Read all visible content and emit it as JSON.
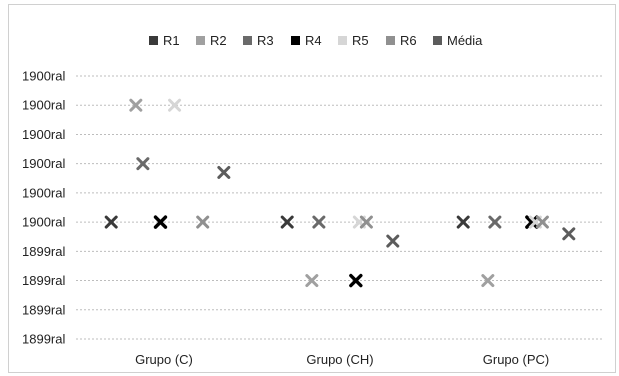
{
  "chart_data": {
    "type": "scatter",
    "marker": "x",
    "categories": [
      "Grupo (C)",
      "Grupo (CH)",
      "Grupo (PC)"
    ],
    "y_tick_labels": [
      "1900ral",
      "1900ral",
      "1900ral",
      "1900ral",
      "1900ral",
      "1900ral",
      "1899ral",
      "1899ral",
      "1899ral",
      "1899ral"
    ],
    "ylim": [
      0,
      9
    ],
    "grid": true,
    "legend_position": "top",
    "series": [
      {
        "name": "R1",
        "color": "#3a3a3a",
        "values": [
          [
            -0.3,
            4
          ],
          [
            -0.3,
            4
          ],
          [
            -0.3,
            4
          ]
        ]
      },
      {
        "name": "R2",
        "color": "#a0a0a0",
        "values": [
          [
            -0.16,
            8
          ],
          [
            -0.16,
            2
          ],
          [
            -0.16,
            2
          ]
        ]
      },
      {
        "name": "R3",
        "color": "#6a6a6a",
        "values": [
          [
            -0.12,
            6
          ],
          [
            -0.12,
            4
          ],
          [
            -0.12,
            4
          ]
        ]
      },
      {
        "name": "R4",
        "color": "#000000",
        "values": [
          [
            -0.02,
            4
          ],
          [
            0.09,
            2
          ],
          [
            0.09,
            4
          ]
        ]
      },
      {
        "name": "R5",
        "color": "#d6d6d6",
        "values": [
          [
            0.06,
            8
          ],
          [
            0.11,
            4
          ],
          [
            0.11,
            4
          ]
        ]
      },
      {
        "name": "R6",
        "color": "#909090",
        "values": [
          [
            0.22,
            4
          ],
          [
            0.15,
            4
          ],
          [
            0.15,
            4
          ]
        ]
      },
      {
        "name": "Média",
        "color": "#5c5c5c",
        "values": [
          [
            0.34,
            5.7
          ],
          [
            0.3,
            3.35
          ],
          [
            0.3,
            3.6
          ]
        ]
      }
    ]
  }
}
